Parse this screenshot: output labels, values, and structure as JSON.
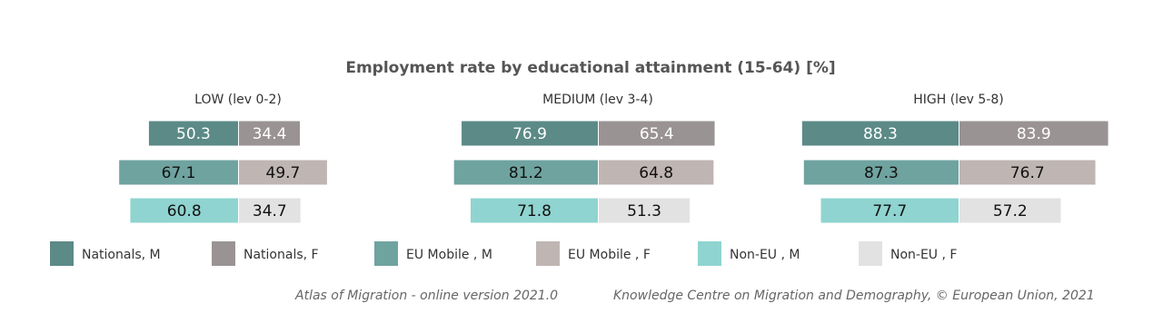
{
  "chart_data": {
    "type": "butterfly",
    "title": "Employment rate by educational attainment (15-64) [%]",
    "categories": [
      "LOW (lev 0-2)",
      "MEDIUM (lev 3-4)",
      "HIGH (lev 5-8)"
    ],
    "series": [
      {
        "name": "Nationals, M",
        "color": "#5b8a87",
        "values": [
          50.3,
          76.9,
          88.3
        ]
      },
      {
        "name": "Nationals, F",
        "color": "#9a9394",
        "values": [
          34.4,
          65.4,
          83.9
        ]
      },
      {
        "name": "EU Mobile , M",
        "color": "#6fa3a0",
        "values": [
          67.1,
          81.2,
          87.3
        ]
      },
      {
        "name": "EU Mobile , F",
        "color": "#bfb5b3",
        "values": [
          49.7,
          64.8,
          76.7
        ]
      },
      {
        "name": "Non-EU , M",
        "color": "#8fd4d0",
        "values": [
          60.8,
          71.8,
          77.7
        ]
      },
      {
        "name": "Non-EU , F",
        "color": "#e2e2e2",
        "values": [
          34.7,
          51.3,
          57.2
        ]
      }
    ],
    "sources": [
      "Atlas of Migration - online version 2021.0",
      "Knowledge Centre on Migration and Demography, © European Union, 2021"
    ]
  }
}
